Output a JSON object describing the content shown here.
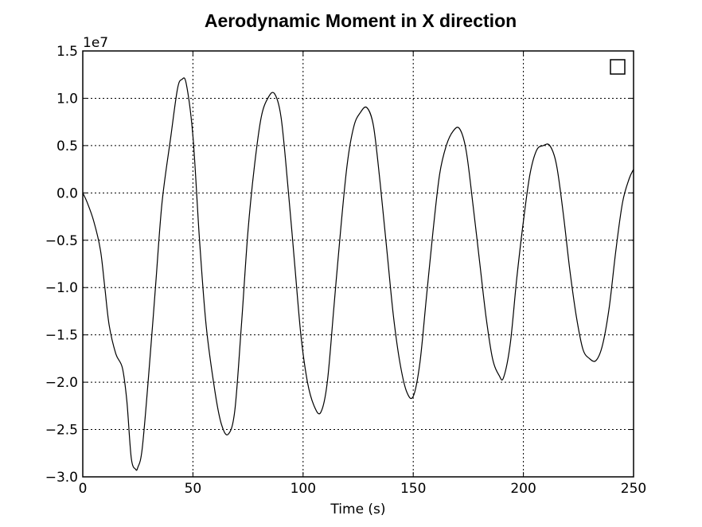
{
  "chart_data": {
    "type": "line",
    "title": "Aerodynamic Moment in X direction",
    "xlabel": "Time (s)",
    "ylabel": "",
    "y_scale_label": "1e7",
    "xlim": [
      0,
      250
    ],
    "ylim": [
      -3.0,
      1.5
    ],
    "x_ticks": [
      0,
      50,
      100,
      150,
      200,
      250
    ],
    "x_tick_labels": [
      "0",
      "50",
      "100",
      "150",
      "200",
      "250"
    ],
    "y_ticks": [
      1.5,
      1.0,
      0.5,
      0.0,
      -0.5,
      -1.0,
      -1.5,
      -2.0,
      -2.5,
      -3.0
    ],
    "y_tick_labels": [
      "1.5",
      "1.0",
      "0.5",
      "0.0",
      "−0.5",
      "−1.0",
      "−1.5",
      "−2.0",
      "−2.5",
      "−3.0"
    ],
    "grid": true,
    "legend": {
      "placement": "top-right",
      "entries": [
        ""
      ]
    },
    "series": [
      {
        "color": "#000000",
        "points": [
          [
            0,
            0.0
          ],
          [
            2,
            -0.1
          ],
          [
            5,
            -0.3
          ],
          [
            8,
            -0.6
          ],
          [
            10,
            -1.0
          ],
          [
            12,
            -1.4
          ],
          [
            15,
            -1.7
          ],
          [
            18,
            -1.85
          ],
          [
            20,
            -2.2
          ],
          [
            22,
            -2.8
          ],
          [
            24,
            -2.92
          ],
          [
            25,
            -2.9
          ],
          [
            27,
            -2.7
          ],
          [
            30,
            -1.9
          ],
          [
            33,
            -1.0
          ],
          [
            36,
            -0.1
          ],
          [
            40,
            0.6
          ],
          [
            43,
            1.1
          ],
          [
            45,
            1.2
          ],
          [
            47,
            1.15
          ],
          [
            50,
            0.6
          ],
          [
            53,
            -0.5
          ],
          [
            56,
            -1.4
          ],
          [
            60,
            -2.1
          ],
          [
            63,
            -2.45
          ],
          [
            66,
            -2.55
          ],
          [
            69,
            -2.3
          ],
          [
            72,
            -1.4
          ],
          [
            75,
            -0.4
          ],
          [
            78,
            0.3
          ],
          [
            81,
            0.8
          ],
          [
            84,
            1.0
          ],
          [
            87,
            1.05
          ],
          [
            90,
            0.8
          ],
          [
            93,
            0.1
          ],
          [
            96,
            -0.7
          ],
          [
            99,
            -1.5
          ],
          [
            102,
            -2.0
          ],
          [
            105,
            -2.25
          ],
          [
            108,
            -2.32
          ],
          [
            111,
            -2.0
          ],
          [
            114,
            -1.2
          ],
          [
            117,
            -0.4
          ],
          [
            120,
            0.3
          ],
          [
            123,
            0.7
          ],
          [
            126,
            0.85
          ],
          [
            129,
            0.9
          ],
          [
            132,
            0.7
          ],
          [
            135,
            0.1
          ],
          [
            138,
            -0.6
          ],
          [
            141,
            -1.3
          ],
          [
            144,
            -1.8
          ],
          [
            147,
            -2.1
          ],
          [
            150,
            -2.15
          ],
          [
            153,
            -1.8
          ],
          [
            156,
            -1.1
          ],
          [
            159,
            -0.4
          ],
          [
            162,
            0.2
          ],
          [
            165,
            0.5
          ],
          [
            168,
            0.65
          ],
          [
            171,
            0.68
          ],
          [
            174,
            0.45
          ],
          [
            177,
            -0.1
          ],
          [
            180,
            -0.7
          ],
          [
            183,
            -1.3
          ],
          [
            186,
            -1.75
          ],
          [
            189,
            -1.93
          ],
          [
            191,
            -1.95
          ],
          [
            194,
            -1.6
          ],
          [
            197,
            -0.9
          ],
          [
            200,
            -0.3
          ],
          [
            203,
            0.2
          ],
          [
            206,
            0.45
          ],
          [
            209,
            0.5
          ],
          [
            212,
            0.5
          ],
          [
            215,
            0.3
          ],
          [
            218,
            -0.2
          ],
          [
            221,
            -0.8
          ],
          [
            224,
            -1.3
          ],
          [
            227,
            -1.65
          ],
          [
            230,
            -1.75
          ],
          [
            233,
            -1.77
          ],
          [
            236,
            -1.6
          ],
          [
            239,
            -1.2
          ],
          [
            242,
            -0.6
          ],
          [
            245,
            -0.1
          ],
          [
            248,
            0.15
          ],
          [
            250,
            0.25
          ]
        ]
      }
    ]
  }
}
